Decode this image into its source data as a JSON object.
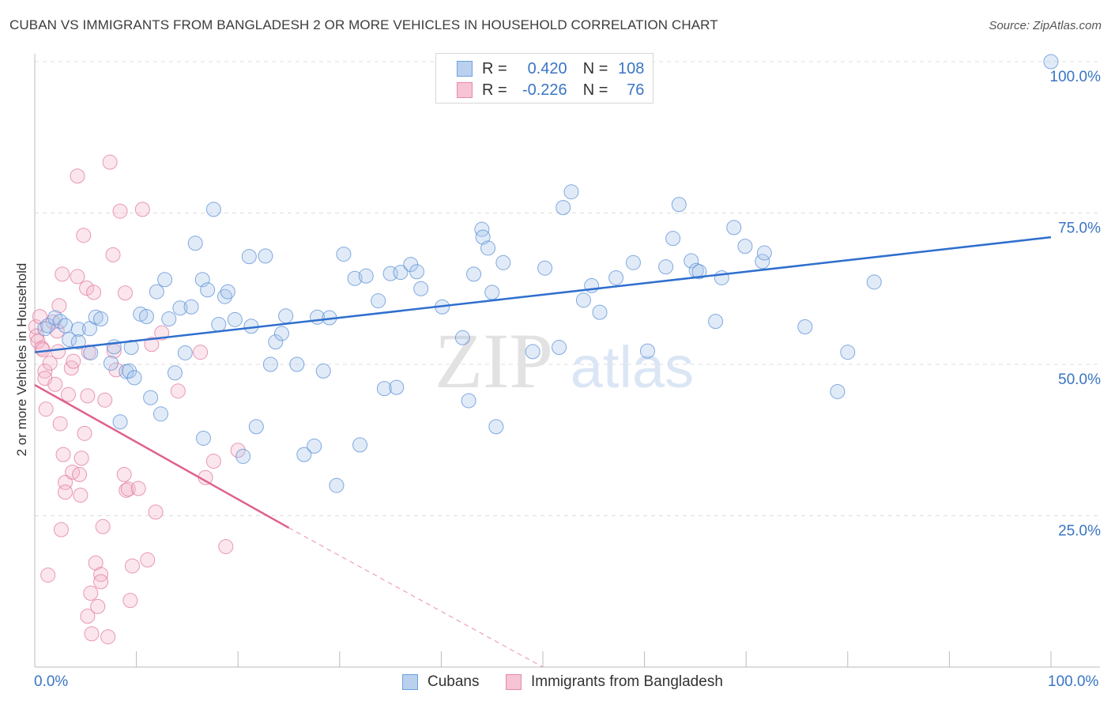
{
  "title": "CUBAN VS IMMIGRANTS FROM BANGLADESH 2 OR MORE VEHICLES IN HOUSEHOLD CORRELATION CHART",
  "source": "Source: ZipAtlas.com",
  "watermark": {
    "zip": "ZIP",
    "atlas": "atlas"
  },
  "legend": {
    "rows": [
      {
        "r_label": "R =",
        "r_value": "0.420",
        "n_label": "N =",
        "n_value": "108",
        "color": "#6fa0dc",
        "fill": "#b9d1ee"
      },
      {
        "r_label": "R =",
        "r_value": "-0.226",
        "n_label": "N =",
        "n_value": "76",
        "color": "#e68aa8",
        "fill": "#f6c4d4"
      }
    ]
  },
  "bottom_legend": {
    "cubans": "Cubans",
    "bangladesh": "Immigrants from Bangladesh"
  },
  "x_min_label": "0.0%",
  "x_max_label": "100.0%",
  "chart_data": {
    "type": "scatter",
    "ylabel": "2 or more Vehicles in Household",
    "xlim": [
      0,
      100
    ],
    "ylim": [
      0,
      100
    ],
    "y_ticks": [
      {
        "value": 25,
        "label": "25.0%"
      },
      {
        "value": 50,
        "label": "50.0%"
      },
      {
        "value": 75,
        "label": "75.0%"
      },
      {
        "value": 100,
        "label": "100.0%"
      }
    ],
    "grid": true,
    "colors": {
      "cubans": "#5a8fd6",
      "bangladesh": "#e2789d",
      "cubans_line": "#2f6fce",
      "bangladesh_line": "#e0608c",
      "tick": "#3a75c4"
    },
    "series": [
      {
        "name": "Cubans",
        "points": [
          [
            1.0,
            55.9
          ],
          [
            1.3,
            56.4
          ],
          [
            2.0,
            57.7
          ],
          [
            2.5,
            57.1
          ],
          [
            3.0,
            56.4
          ],
          [
            3.4,
            54.1
          ],
          [
            4.3,
            55.8
          ],
          [
            4.3,
            53.7
          ],
          [
            5.4,
            55.9
          ],
          [
            5.5,
            51.9
          ],
          [
            6.0,
            57.8
          ],
          [
            6.5,
            57.5
          ],
          [
            7.5,
            50.2
          ],
          [
            7.8,
            52.9
          ],
          [
            8.4,
            40.5
          ],
          [
            9.0,
            48.8
          ],
          [
            9.3,
            48.9
          ],
          [
            9.5,
            52.8
          ],
          [
            9.8,
            47.8
          ],
          [
            10.4,
            58.3
          ],
          [
            11.0,
            57.9
          ],
          [
            11.4,
            44.5
          ],
          [
            12.0,
            62.0
          ],
          [
            12.4,
            41.8
          ],
          [
            12.8,
            64.0
          ],
          [
            13.2,
            57.5
          ],
          [
            13.8,
            48.6
          ],
          [
            14.3,
            59.3
          ],
          [
            14.8,
            51.9
          ],
          [
            15.4,
            59.5
          ],
          [
            15.8,
            70.0
          ],
          [
            16.5,
            64.0
          ],
          [
            16.6,
            37.8
          ],
          [
            17.0,
            62.3
          ],
          [
            17.6,
            75.6
          ],
          [
            18.1,
            56.6
          ],
          [
            18.7,
            61.2
          ],
          [
            19.0,
            62.0
          ],
          [
            19.7,
            57.4
          ],
          [
            20.5,
            34.8
          ],
          [
            21.1,
            67.8
          ],
          [
            21.3,
            56.3
          ],
          [
            21.8,
            39.7
          ],
          [
            22.7,
            67.9
          ],
          [
            23.2,
            50.0
          ],
          [
            23.7,
            53.7
          ],
          [
            24.3,
            55.1
          ],
          [
            24.7,
            58.0
          ],
          [
            25.8,
            50.0
          ],
          [
            26.5,
            35.1
          ],
          [
            27.5,
            36.5
          ],
          [
            27.8,
            57.8
          ],
          [
            28.4,
            48.9
          ],
          [
            29.0,
            57.7
          ],
          [
            29.7,
            30.0
          ],
          [
            30.4,
            68.2
          ],
          [
            31.5,
            64.2
          ],
          [
            32.0,
            36.7
          ],
          [
            32.6,
            64.6
          ],
          [
            33.8,
            60.5
          ],
          [
            34.4,
            46.0
          ],
          [
            35.0,
            65.0
          ],
          [
            35.6,
            46.2
          ],
          [
            36.0,
            65.2
          ],
          [
            37.0,
            66.5
          ],
          [
            37.6,
            65.3
          ],
          [
            38.0,
            62.5
          ],
          [
            40.1,
            59.5
          ],
          [
            42.1,
            54.4
          ],
          [
            42.7,
            44.0
          ],
          [
            43.2,
            64.9
          ],
          [
            44.0,
            72.3
          ],
          [
            44.1,
            71.0
          ],
          [
            44.6,
            69.2
          ],
          [
            45.0,
            61.9
          ],
          [
            45.4,
            39.7
          ],
          [
            46.1,
            66.8
          ],
          [
            49.0,
            52.1
          ],
          [
            50.2,
            65.9
          ],
          [
            51.6,
            52.8
          ],
          [
            52.0,
            75.9
          ],
          [
            52.8,
            78.5
          ],
          [
            54.0,
            60.6
          ],
          [
            54.8,
            63.0
          ],
          [
            55.6,
            58.6
          ],
          [
            57.2,
            64.3
          ],
          [
            58.9,
            66.8
          ],
          [
            60.3,
            52.2
          ],
          [
            62.1,
            66.1
          ],
          [
            62.8,
            70.8
          ],
          [
            63.4,
            76.4
          ],
          [
            64.6,
            67.1
          ],
          [
            65.1,
            65.5
          ],
          [
            65.4,
            65.3
          ],
          [
            67.0,
            57.1
          ],
          [
            67.6,
            64.3
          ],
          [
            68.8,
            72.6
          ],
          [
            69.9,
            69.5
          ],
          [
            71.6,
            67.0
          ],
          [
            71.8,
            68.4
          ],
          [
            75.8,
            56.2
          ],
          [
            79.0,
            45.5
          ],
          [
            80.0,
            52.0
          ],
          [
            82.6,
            63.6
          ],
          [
            100.0,
            100.0
          ]
        ]
      },
      {
        "name": "Immigrants from Bangladesh",
        "points": [
          [
            0.1,
            56.2
          ],
          [
            0.2,
            54.7
          ],
          [
            0.3,
            53.8
          ],
          [
            0.5,
            57.9
          ],
          [
            0.7,
            52.7
          ],
          [
            0.8,
            52.4
          ],
          [
            1.0,
            48.9
          ],
          [
            1.0,
            47.7
          ],
          [
            1.1,
            42.6
          ],
          [
            1.3,
            15.2
          ],
          [
            1.5,
            50.2
          ],
          [
            1.8,
            57.0
          ],
          [
            2.0,
            46.7
          ],
          [
            2.2,
            55.5
          ],
          [
            2.3,
            52.1
          ],
          [
            2.4,
            59.7
          ],
          [
            2.5,
            40.2
          ],
          [
            2.6,
            22.7
          ],
          [
            2.7,
            64.9
          ],
          [
            2.8,
            35.1
          ],
          [
            3.0,
            30.5
          ],
          [
            3.0,
            28.9
          ],
          [
            3.3,
            45.0
          ],
          [
            3.6,
            49.4
          ],
          [
            3.7,
            32.2
          ],
          [
            3.8,
            50.5
          ],
          [
            4.2,
            81.1
          ],
          [
            4.2,
            64.5
          ],
          [
            4.4,
            31.8
          ],
          [
            4.5,
            28.4
          ],
          [
            4.6,
            34.5
          ],
          [
            4.8,
            71.3
          ],
          [
            4.9,
            38.6
          ],
          [
            5.1,
            62.6
          ],
          [
            5.2,
            44.8
          ],
          [
            5.2,
            8.4
          ],
          [
            5.3,
            52.0
          ],
          [
            5.5,
            12.2
          ],
          [
            5.6,
            5.5
          ],
          [
            5.8,
            61.9
          ],
          [
            6.0,
            17.2
          ],
          [
            6.2,
            10.0
          ],
          [
            6.5,
            15.3
          ],
          [
            6.5,
            14.1
          ],
          [
            6.7,
            23.2
          ],
          [
            6.9,
            44.1
          ],
          [
            7.2,
            5.0
          ],
          [
            7.4,
            83.4
          ],
          [
            7.7,
            68.1
          ],
          [
            7.8,
            52.2
          ],
          [
            8.0,
            49.1
          ],
          [
            8.4,
            75.3
          ],
          [
            8.8,
            31.8
          ],
          [
            8.9,
            61.8
          ],
          [
            9.0,
            29.2
          ],
          [
            9.2,
            29.4
          ],
          [
            9.4,
            11.0
          ],
          [
            9.6,
            16.7
          ],
          [
            10.2,
            29.5
          ],
          [
            10.6,
            75.6
          ],
          [
            11.1,
            17.7
          ],
          [
            11.5,
            53.3
          ],
          [
            11.9,
            25.6
          ],
          [
            12.5,
            55.2
          ],
          [
            14.1,
            45.6
          ],
          [
            16.3,
            52.0
          ],
          [
            16.8,
            31.3
          ],
          [
            17.6,
            34.0
          ],
          [
            18.8,
            19.9
          ],
          [
            20.0,
            35.8
          ]
        ]
      }
    ],
    "trend_lines": [
      {
        "series": "Cubans",
        "x": [
          0,
          100
        ],
        "y": [
          52.0,
          71.0
        ]
      },
      {
        "series": "Immigrants from Bangladesh",
        "x": [
          0,
          25.0
        ],
        "y": [
          46.6,
          23.0
        ],
        "dashed_to": [
          50.0,
          0.0
        ]
      }
    ]
  }
}
